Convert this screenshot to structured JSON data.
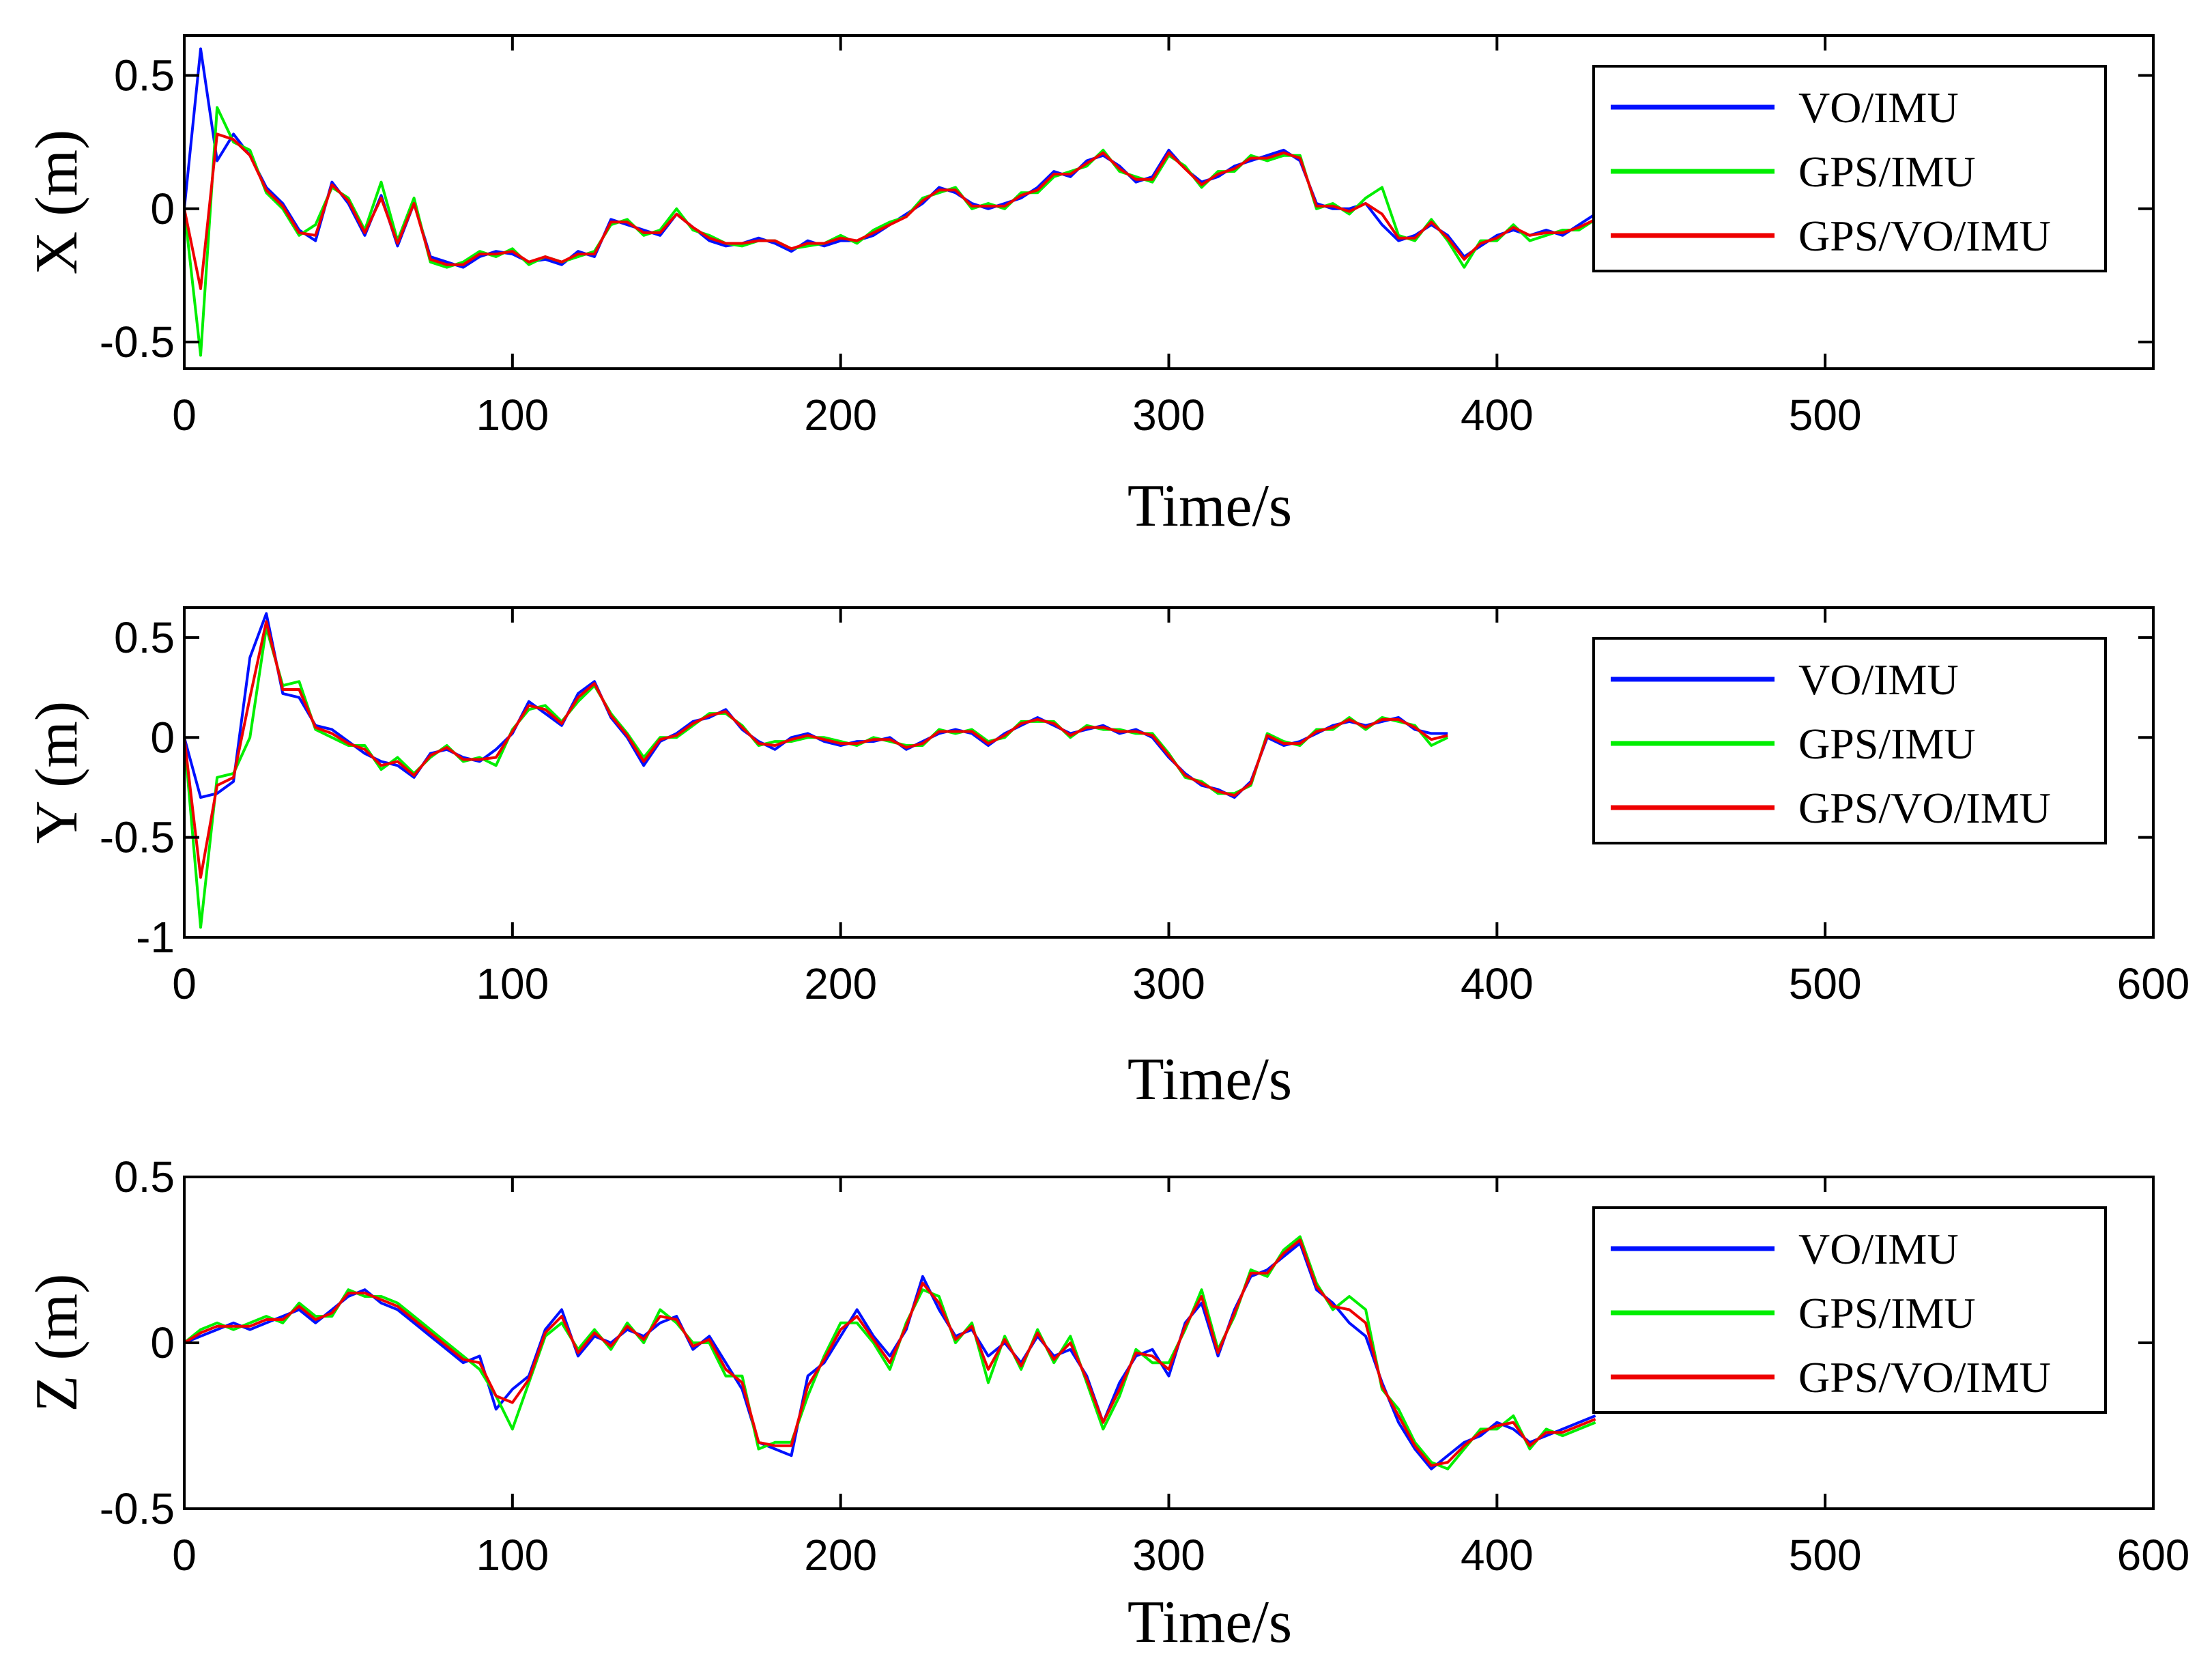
{
  "chart_data": [
    {
      "type": "line",
      "name": "x-error",
      "title": "",
      "xlabel": "Time/s",
      "ylabel": "X (m)",
      "xlim": [
        0,
        600
      ],
      "ylim": [
        -0.6,
        0.65
      ],
      "xticks": [
        "0",
        "100",
        "200",
        "300",
        "400",
        "500"
      ],
      "yticks": [
        "0.5",
        "0",
        "-0.5"
      ],
      "ytick_values": [
        0.5,
        0,
        -0.5
      ],
      "xtick_values": [
        0,
        100,
        200,
        300,
        400,
        500
      ],
      "legend_position": "top-right",
      "x_step": 5,
      "series": [
        {
          "name": "VO/IMU",
          "color": "#0010ff",
          "values": [
            0.0,
            0.6,
            0.18,
            0.28,
            0.2,
            0.08,
            0.02,
            -0.08,
            -0.12,
            0.1,
            0.02,
            -0.1,
            0.05,
            -0.14,
            0.02,
            -0.18,
            -0.2,
            -0.22,
            -0.18,
            -0.16,
            -0.17,
            -0.2,
            -0.19,
            -0.21,
            -0.16,
            -0.18,
            -0.04,
            -0.06,
            -0.08,
            -0.1,
            -0.02,
            -0.07,
            -0.12,
            -0.14,
            -0.13,
            -0.11,
            -0.13,
            -0.16,
            -0.12,
            -0.14,
            -0.12,
            -0.12,
            -0.1,
            -0.06,
            -0.02,
            0.02,
            0.08,
            0.06,
            0.02,
            0.0,
            0.02,
            0.04,
            0.08,
            0.14,
            0.12,
            0.18,
            0.2,
            0.16,
            0.1,
            0.12,
            0.22,
            0.15,
            0.1,
            0.12,
            0.16,
            0.18,
            0.2,
            0.22,
            0.18,
            0.02,
            0.0,
            0.0,
            0.02,
            -0.06,
            -0.12,
            -0.1,
            -0.06,
            -0.1,
            -0.18,
            -0.14,
            -0.1,
            -0.08,
            -0.1,
            -0.08,
            -0.1,
            -0.06,
            -0.02
          ]
        },
        {
          "name": "GPS/IMU",
          "color": "#00ee00",
          "values": [
            0.0,
            -0.55,
            0.38,
            0.25,
            0.22,
            0.06,
            0.0,
            -0.1,
            -0.06,
            0.08,
            0.04,
            -0.08,
            0.1,
            -0.12,
            0.04,
            -0.2,
            -0.22,
            -0.2,
            -0.16,
            -0.18,
            -0.15,
            -0.21,
            -0.18,
            -0.2,
            -0.18,
            -0.16,
            -0.06,
            -0.04,
            -0.1,
            -0.08,
            0.0,
            -0.08,
            -0.1,
            -0.13,
            -0.14,
            -0.12,
            -0.12,
            -0.15,
            -0.14,
            -0.13,
            -0.1,
            -0.13,
            -0.08,
            -0.05,
            -0.03,
            0.04,
            0.06,
            0.08,
            0.0,
            0.02,
            0.0,
            0.06,
            0.06,
            0.12,
            0.14,
            0.16,
            0.22,
            0.14,
            0.12,
            0.1,
            0.2,
            0.16,
            0.08,
            0.14,
            0.14,
            0.2,
            0.18,
            0.2,
            0.2,
            0.0,
            0.02,
            -0.02,
            0.04,
            0.08,
            -0.1,
            -0.12,
            -0.04,
            -0.12,
            -0.22,
            -0.12,
            -0.12,
            -0.06,
            -0.12,
            -0.1,
            -0.08,
            -0.08,
            -0.04
          ]
        },
        {
          "name": "GPS/VO/IMU",
          "color": "#ee0000",
          "values": [
            0.0,
            -0.3,
            0.28,
            0.26,
            0.2,
            0.07,
            0.01,
            -0.09,
            -0.1,
            0.09,
            0.03,
            -0.09,
            0.04,
            -0.13,
            0.02,
            -0.19,
            -0.21,
            -0.21,
            -0.17,
            -0.17,
            -0.16,
            -0.2,
            -0.18,
            -0.2,
            -0.17,
            -0.17,
            -0.05,
            -0.05,
            -0.09,
            -0.09,
            -0.02,
            -0.07,
            -0.11,
            -0.13,
            -0.13,
            -0.12,
            -0.12,
            -0.15,
            -0.13,
            -0.13,
            -0.11,
            -0.12,
            -0.09,
            -0.06,
            -0.03,
            0.03,
            0.07,
            0.07,
            0.01,
            0.01,
            0.01,
            0.05,
            0.07,
            0.13,
            0.13,
            0.17,
            0.21,
            0.15,
            0.11,
            0.11,
            0.21,
            0.15,
            0.09,
            0.13,
            0.15,
            0.19,
            0.19,
            0.21,
            0.19,
            0.01,
            0.01,
            -0.01,
            0.02,
            -0.02,
            -0.11,
            -0.11,
            -0.05,
            -0.11,
            -0.19,
            -0.13,
            -0.11,
            -0.07,
            -0.1,
            -0.09,
            -0.09,
            -0.07,
            -0.04
          ]
        }
      ]
    },
    {
      "type": "line",
      "name": "y-error",
      "title": "",
      "xlabel": "Time/s",
      "ylabel": "Y (m)",
      "xlim": [
        0,
        600
      ],
      "ylim": [
        -1,
        0.65
      ],
      "xticks": [
        "0",
        "100",
        "200",
        "300",
        "400",
        "500",
        "600"
      ],
      "yticks": [
        "0.5",
        "0",
        "-0.5",
        "-1"
      ],
      "ytick_values": [
        0.5,
        0,
        -0.5,
        -1
      ],
      "xtick_values": [
        0,
        100,
        200,
        300,
        400,
        500,
        600
      ],
      "legend_position": "top-right",
      "x_step": 5,
      "series": [
        {
          "name": "VO/IMU",
          "color": "#0010ff",
          "values": [
            0.0,
            -0.3,
            -0.28,
            -0.22,
            0.4,
            0.62,
            0.22,
            0.2,
            0.06,
            0.04,
            -0.02,
            -0.08,
            -0.12,
            -0.14,
            -0.2,
            -0.08,
            -0.06,
            -0.1,
            -0.12,
            -0.06,
            0.02,
            0.18,
            0.12,
            0.06,
            0.22,
            0.28,
            0.1,
            0.0,
            -0.14,
            -0.02,
            0.02,
            0.08,
            0.1,
            0.14,
            0.04,
            -0.02,
            -0.06,
            0.0,
            0.02,
            -0.02,
            -0.04,
            -0.02,
            -0.02,
            0.0,
            -0.06,
            -0.02,
            0.02,
            0.04,
            0.02,
            -0.04,
            0.02,
            0.06,
            0.1,
            0.06,
            0.02,
            0.04,
            0.06,
            0.02,
            0.04,
            0.0,
            -0.1,
            -0.18,
            -0.24,
            -0.26,
            -0.3,
            -0.22,
            0.0,
            -0.04,
            -0.02,
            0.02,
            0.06,
            0.08,
            0.06,
            0.08,
            0.1,
            0.04,
            0.02,
            0.02
          ]
        },
        {
          "name": "GPS/IMU",
          "color": "#00ee00",
          "values": [
            0.0,
            -0.95,
            -0.2,
            -0.18,
            0.0,
            0.55,
            0.26,
            0.28,
            0.04,
            0.0,
            -0.04,
            -0.04,
            -0.16,
            -0.1,
            -0.18,
            -0.1,
            -0.04,
            -0.12,
            -0.1,
            -0.14,
            0.04,
            0.14,
            0.16,
            0.08,
            0.18,
            0.26,
            0.12,
            0.02,
            -0.1,
            0.0,
            0.0,
            0.06,
            0.12,
            0.12,
            0.06,
            -0.04,
            -0.02,
            -0.02,
            0.0,
            0.0,
            -0.02,
            -0.04,
            0.0,
            -0.02,
            -0.04,
            -0.04,
            0.04,
            0.02,
            0.04,
            -0.02,
            0.0,
            0.08,
            0.08,
            0.08,
            0.0,
            0.06,
            0.04,
            0.04,
            0.02,
            0.02,
            -0.08,
            -0.2,
            -0.22,
            -0.28,
            -0.28,
            -0.24,
            0.02,
            -0.02,
            -0.04,
            0.04,
            0.04,
            0.1,
            0.04,
            0.1,
            0.08,
            0.06,
            -0.04,
            0.0
          ]
        },
        {
          "name": "GPS/VO/IMU",
          "color": "#ee0000",
          "values": [
            0.0,
            -0.7,
            -0.24,
            -0.2,
            0.2,
            0.58,
            0.24,
            0.24,
            0.05,
            0.02,
            -0.03,
            -0.06,
            -0.14,
            -0.12,
            -0.19,
            -0.09,
            -0.05,
            -0.11,
            -0.11,
            -0.1,
            0.03,
            0.16,
            0.14,
            0.07,
            0.2,
            0.27,
            0.11,
            0.01,
            -0.12,
            -0.01,
            0.01,
            0.07,
            0.11,
            0.13,
            0.05,
            -0.03,
            -0.04,
            -0.01,
            0.01,
            -0.01,
            -0.03,
            -0.03,
            -0.01,
            -0.01,
            -0.05,
            -0.03,
            0.03,
            0.03,
            0.03,
            -0.03,
            0.01,
            0.07,
            0.09,
            0.07,
            0.01,
            0.05,
            0.05,
            0.03,
            0.03,
            0.01,
            -0.09,
            -0.19,
            -0.23,
            -0.27,
            -0.29,
            -0.23,
            0.01,
            -0.03,
            -0.03,
            0.03,
            0.05,
            0.09,
            0.05,
            0.09,
            0.09,
            0.05,
            -0.01,
            0.01
          ]
        }
      ]
    },
    {
      "type": "line",
      "name": "z-error",
      "title": "",
      "xlabel": "Time/s",
      "ylabel": "Z (m)",
      "xlim": [
        0,
        600
      ],
      "ylim": [
        -0.5,
        0.5
      ],
      "xticks": [
        "0",
        "100",
        "200",
        "300",
        "400",
        "500",
        "600"
      ],
      "yticks": [
        "0.5",
        "0",
        "-0.5"
      ],
      "ytick_values": [
        0.5,
        0,
        -0.5
      ],
      "xtick_values": [
        0,
        100,
        200,
        300,
        400,
        500,
        600
      ],
      "legend_position": "top-right",
      "x_step": 5,
      "series": [
        {
          "name": "VO/IMU",
          "color": "#0010ff",
          "values": [
            0.0,
            0.02,
            0.04,
            0.06,
            0.04,
            0.06,
            0.08,
            0.1,
            0.06,
            0.1,
            0.14,
            0.16,
            0.12,
            0.1,
            0.06,
            0.02,
            -0.02,
            -0.06,
            -0.04,
            -0.2,
            -0.14,
            -0.1,
            0.04,
            0.1,
            -0.04,
            0.02,
            0.0,
            0.04,
            0.02,
            0.06,
            0.08,
            -0.02,
            0.02,
            -0.06,
            -0.14,
            -0.3,
            -0.32,
            -0.34,
            -0.1,
            -0.06,
            0.02,
            0.1,
            0.02,
            -0.04,
            0.04,
            0.2,
            0.1,
            0.02,
            0.04,
            -0.04,
            0.0,
            -0.06,
            0.02,
            -0.04,
            -0.02,
            -0.1,
            -0.24,
            -0.12,
            -0.04,
            -0.02,
            -0.1,
            0.06,
            0.12,
            -0.04,
            0.1,
            0.2,
            0.22,
            0.26,
            0.3,
            0.16,
            0.12,
            0.06,
            0.02,
            -0.12,
            -0.24,
            -0.32,
            -0.38,
            -0.34,
            -0.3,
            -0.28,
            -0.24,
            -0.26,
            -0.3,
            -0.28,
            -0.26,
            -0.24,
            -0.22
          ]
        },
        {
          "name": "GPS/IMU",
          "color": "#00ee00",
          "values": [
            0.0,
            0.04,
            0.06,
            0.04,
            0.06,
            0.08,
            0.06,
            0.12,
            0.08,
            0.08,
            0.16,
            0.14,
            0.14,
            0.12,
            0.08,
            0.04,
            0.0,
            -0.04,
            -0.08,
            -0.16,
            -0.26,
            -0.12,
            0.02,
            0.06,
            -0.02,
            0.04,
            -0.02,
            0.06,
            0.0,
            0.1,
            0.06,
            0.0,
            0.0,
            -0.1,
            -0.1,
            -0.32,
            -0.3,
            -0.3,
            -0.16,
            -0.04,
            0.06,
            0.06,
            0.0,
            -0.08,
            0.06,
            0.16,
            0.14,
            0.0,
            0.06,
            -0.12,
            0.02,
            -0.08,
            0.04,
            -0.06,
            0.02,
            -0.12,
            -0.26,
            -0.16,
            -0.02,
            -0.06,
            -0.06,
            0.04,
            0.16,
            -0.02,
            0.08,
            0.22,
            0.2,
            0.28,
            0.32,
            0.18,
            0.1,
            0.14,
            0.1,
            -0.14,
            -0.2,
            -0.3,
            -0.36,
            -0.38,
            -0.32,
            -0.26,
            -0.26,
            -0.22,
            -0.32,
            -0.26,
            -0.28,
            -0.26,
            -0.24
          ]
        },
        {
          "name": "GPS/VO/IMU",
          "color": "#ee0000",
          "values": [
            0.0,
            0.03,
            0.05,
            0.05,
            0.05,
            0.07,
            0.07,
            0.11,
            0.07,
            0.09,
            0.15,
            0.15,
            0.13,
            0.11,
            0.07,
            0.03,
            -0.01,
            -0.05,
            -0.06,
            -0.16,
            -0.18,
            -0.11,
            0.03,
            0.08,
            -0.03,
            0.03,
            -0.01,
            0.05,
            0.01,
            0.08,
            0.07,
            -0.01,
            0.01,
            -0.08,
            -0.12,
            -0.3,
            -0.31,
            -0.31,
            -0.13,
            -0.05,
            0.04,
            0.08,
            0.01,
            -0.06,
            0.05,
            0.18,
            0.12,
            0.01,
            0.05,
            -0.08,
            0.01,
            -0.07,
            0.03,
            -0.05,
            0.0,
            -0.11,
            -0.24,
            -0.14,
            -0.03,
            -0.04,
            -0.08,
            0.05,
            0.14,
            -0.03,
            0.09,
            0.21,
            0.21,
            0.27,
            0.31,
            0.17,
            0.11,
            0.1,
            0.06,
            -0.13,
            -0.22,
            -0.31,
            -0.37,
            -0.36,
            -0.31,
            -0.27,
            -0.25,
            -0.24,
            -0.31,
            -0.27,
            -0.27,
            -0.25,
            -0.23
          ]
        }
      ]
    }
  ]
}
